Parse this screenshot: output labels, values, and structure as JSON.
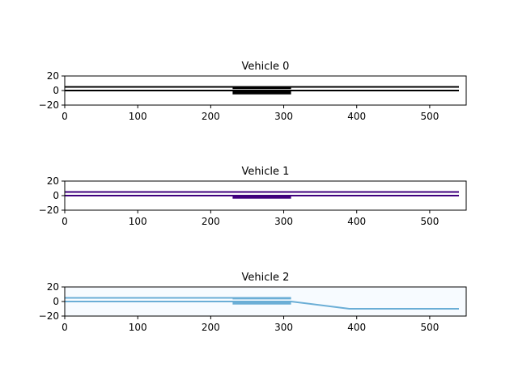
{
  "chart_data": [
    {
      "type": "line",
      "title": "Vehicle 0",
      "xlim": [
        0,
        550
      ],
      "ylim": [
        -20,
        20
      ],
      "xticks": [
        0,
        100,
        200,
        300,
        400,
        500
      ],
      "yticks": [
        20,
        0,
        -20
      ],
      "background": "#ffffff",
      "color": "#000000",
      "series": [
        {
          "x": [
            0,
            540
          ],
          "y": [
            5,
            5
          ]
        },
        {
          "x": [
            0,
            540
          ],
          "y": [
            0,
            0
          ]
        },
        {
          "x": [
            230,
            310
          ],
          "y": [
            3,
            3
          ]
        },
        {
          "x": [
            230,
            310
          ],
          "y": [
            -3,
            -3
          ],
          "thick": true
        }
      ]
    },
    {
      "type": "line",
      "title": "Vehicle 1",
      "xlim": [
        0,
        550
      ],
      "ylim": [
        -20,
        20
      ],
      "xticks": [
        0,
        100,
        200,
        300,
        400,
        500
      ],
      "yticks": [
        20,
        0,
        -20
      ],
      "background": "#ffffff",
      "color": "#3f007d",
      "series": [
        {
          "x": [
            0,
            540
          ],
          "y": [
            5,
            5
          ]
        },
        {
          "x": [
            0,
            540
          ],
          "y": [
            0,
            0
          ]
        },
        {
          "x": [
            230,
            310
          ],
          "y": [
            -2,
            -2
          ],
          "thick": true
        }
      ]
    },
    {
      "type": "line",
      "title": "Vehicle 2",
      "xlim": [
        0,
        550
      ],
      "ylim": [
        -20,
        20
      ],
      "xticks": [
        0,
        100,
        200,
        300,
        400,
        500
      ],
      "yticks": [
        20,
        0,
        -20
      ],
      "background": "#f7fbff",
      "color": "#6baed6",
      "series": [
        {
          "x": [
            0,
            310
          ],
          "y": [
            5,
            5
          ]
        },
        {
          "x": [
            0,
            310,
            390,
            540
          ],
          "y": [
            0,
            0,
            -10,
            -10
          ]
        },
        {
          "x": [
            230,
            310
          ],
          "y": [
            4,
            4
          ]
        },
        {
          "x": [
            230,
            310
          ],
          "y": [
            -2,
            -2
          ],
          "thick": true
        }
      ]
    }
  ]
}
